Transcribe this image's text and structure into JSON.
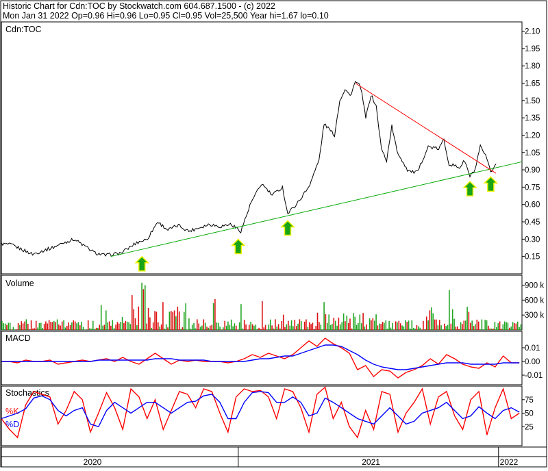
{
  "header": {
    "line1": "Historic Chart for Cdn:TOC by Stockwatch.com 604.687.1500 - (c) 2022",
    "line2": "Mon Jan 31 2022   Op=0.96  Hi=0.96  Lo=0.95  Cl=0.95  Vol=25,500  Year hi=1.67  lo=0.10"
  },
  "chart_data": [
    {
      "type": "line",
      "title": "Cdn:TOC",
      "x_axis": {
        "labels": [
          "2020",
          "2021",
          "2022"
        ]
      },
      "y_ticks": [
        "2.10",
        "1.95",
        "1.80",
        "1.65",
        "1.50",
        "1.35",
        "1.20",
        "1.05",
        "0.90",
        "0.75",
        "0.60",
        "0.45",
        "0.30",
        "0.15"
      ],
      "ylim": [
        0.0,
        2.18
      ],
      "series": [
        {
          "color": "#000000",
          "points": [
            [
              0,
              0.26
            ],
            [
              0.02,
              0.25
            ],
            [
              0.04,
              0.21
            ],
            [
              0.06,
              0.17
            ],
            [
              0.08,
              0.2
            ],
            [
              0.1,
              0.23
            ],
            [
              0.12,
              0.27
            ],
            [
              0.14,
              0.3
            ],
            [
              0.16,
              0.24
            ],
            [
              0.18,
              0.18
            ],
            [
              0.2,
              0.16
            ],
            [
              0.23,
              0.18
            ],
            [
              0.26,
              0.27
            ],
            [
              0.28,
              0.3
            ],
            [
              0.3,
              0.45
            ],
            [
              0.32,
              0.38
            ],
            [
              0.34,
              0.42
            ],
            [
              0.36,
              0.37
            ],
            [
              0.38,
              0.4
            ],
            [
              0.4,
              0.43
            ],
            [
              0.42,
              0.41
            ],
            [
              0.44,
              0.43
            ],
            [
              0.46,
              0.37
            ],
            [
              0.48,
              0.62
            ],
            [
              0.5,
              0.78
            ],
            [
              0.52,
              0.68
            ],
            [
              0.54,
              0.75
            ],
            [
              0.55,
              0.52
            ],
            [
              0.57,
              0.62
            ],
            [
              0.59,
              0.75
            ],
            [
              0.61,
              0.98
            ],
            [
              0.62,
              1.3
            ],
            [
              0.64,
              1.2
            ],
            [
              0.65,
              1.5
            ],
            [
              0.66,
              1.6
            ],
            [
              0.67,
              1.54
            ],
            [
              0.68,
              1.66
            ],
            [
              0.69,
              1.62
            ],
            [
              0.7,
              1.35
            ],
            [
              0.71,
              1.55
            ],
            [
              0.72,
              1.45
            ],
            [
              0.73,
              1.08
            ],
            [
              0.74,
              0.98
            ],
            [
              0.75,
              1.28
            ],
            [
              0.76,
              1.06
            ],
            [
              0.78,
              0.9
            ],
            [
              0.79,
              0.88
            ],
            [
              0.8,
              0.88
            ],
            [
              0.81,
              1.0
            ],
            [
              0.82,
              1.1
            ],
            [
              0.84,
              1.08
            ],
            [
              0.85,
              1.16
            ],
            [
              0.86,
              0.95
            ],
            [
              0.88,
              0.92
            ],
            [
              0.89,
              0.98
            ],
            [
              0.9,
              0.84
            ],
            [
              0.91,
              0.9
            ],
            [
              0.92,
              1.1
            ],
            [
              0.93,
              1.02
            ],
            [
              0.94,
              0.88
            ],
            [
              0.95,
              0.95
            ]
          ]
        },
        {
          "color": "#00aa00",
          "points": [
            [
              0.21,
              0.15
            ],
            [
              1.0,
              0.97
            ]
          ]
        },
        {
          "color": "#ff0000",
          "points": [
            [
              0.68,
              1.65
            ],
            [
              0.95,
              0.87
            ]
          ]
        }
      ],
      "annotations": [
        {
          "type": "up-arrow",
          "color": "#19a319",
          "x": 0.27,
          "y": 0.09
        },
        {
          "type": "up-arrow",
          "color": "#19a319",
          "x": 0.455,
          "y": 0.24
        },
        {
          "type": "up-arrow",
          "color": "#19a319",
          "x": 0.55,
          "y": 0.4
        },
        {
          "type": "up-arrow",
          "color": "#19a319",
          "x": 0.9,
          "y": 0.74
        },
        {
          "type": "up-arrow",
          "color": "#19a319",
          "x": 0.94,
          "y": 0.78
        }
      ]
    },
    {
      "type": "bar",
      "title": "Volume",
      "y_ticks": [
        "900 k",
        "600 k",
        "300 k"
      ],
      "ylim": [
        0,
        1100
      ],
      "units": "k"
    },
    {
      "type": "line",
      "title": "MACD",
      "y_ticks": [
        "0.01",
        "0.00",
        "-0.01"
      ],
      "ylim": [
        -0.017,
        0.022
      ],
      "series": [
        {
          "color": "#ff0000",
          "values": [
            0.0,
            0.0,
            -0.001,
            0.001,
            0.0,
            0.0,
            0.001,
            -0.002,
            -0.001,
            0.0,
            0.001,
            0.0,
            0.001,
            0.002,
            0.0,
            0.003,
            0.0,
            -0.002,
            0.002,
            0.006,
            0.002,
            -0.002,
            0.001,
            0.0,
            0.001,
            0.0,
            0.0,
            0.0,
            -0.001,
            0.0,
            0.002,
            0.005,
            0.003,
            0.006,
            0.004,
            0.002,
            0.005,
            0.01,
            0.015,
            0.011,
            0.017,
            0.013,
            0.01,
            0.006,
            -0.006,
            -0.003,
            -0.011,
            -0.006,
            -0.007,
            -0.012,
            -0.008,
            -0.006,
            -0.003,
            0.002,
            -0.002,
            0.005,
            0.002,
            -0.002,
            -0.004,
            -0.005,
            -0.001,
            -0.004,
            0.004,
            -0.001,
            -0.001
          ]
        },
        {
          "color": "#0000ff",
          "values": [
            0.0,
            0.0,
            0.0,
            0.0,
            0.0,
            0.0,
            0.0,
            0.0,
            0.0,
            0.0,
            0.0,
            0.0,
            0.001,
            0.001,
            0.001,
            0.001,
            0.001,
            0.001,
            0.001,
            0.002,
            0.002,
            0.002,
            0.001,
            0.001,
            0.001,
            0.001,
            0.0,
            0.0,
            0.0,
            0.0,
            0.0,
            0.001,
            0.002,
            0.002,
            0.003,
            0.004,
            0.004,
            0.006,
            0.008,
            0.01,
            0.012,
            0.012,
            0.011,
            0.008,
            0.005,
            0.001,
            -0.002,
            -0.004,
            -0.005,
            -0.006,
            -0.006,
            -0.005,
            -0.004,
            -0.003,
            -0.002,
            -0.001,
            -0.001,
            -0.001,
            -0.002,
            -0.002,
            -0.002,
            -0.002,
            -0.001,
            -0.001,
            -0.001
          ]
        }
      ]
    },
    {
      "type": "line",
      "title": "Stochastics",
      "legend": [
        "%K",
        "%D"
      ],
      "y_ticks": [
        "75",
        "50",
        "25"
      ],
      "ylim": [
        -10,
        100
      ],
      "series": [
        {
          "name": "%K",
          "color": "#ff0000",
          "values": [
            40,
            20,
            5,
            65,
            90,
            85,
            80,
            30,
            55,
            90,
            75,
            15,
            50,
            88,
            60,
            20,
            95,
            80,
            40,
            75,
            20,
            55,
            90,
            85,
            60,
            95,
            90,
            50,
            15,
            80,
            95,
            90,
            92,
            80,
            40,
            95,
            90,
            60,
            15,
            85,
            98,
            40,
            70,
            25,
            5,
            55,
            20,
            90,
            85,
            15,
            50,
            70,
            95,
            30,
            80,
            90,
            45,
            20,
            75,
            90,
            10,
            60,
            95,
            40,
            50
          ]
        },
        {
          "name": "%D",
          "color": "#0000ff",
          "values": [
            40,
            45,
            50,
            58,
            78,
            82,
            75,
            55,
            45,
            55,
            60,
            30,
            25,
            55,
            70,
            60,
            50,
            60,
            70,
            70,
            60,
            50,
            60,
            70,
            72,
            82,
            85,
            70,
            40,
            40,
            70,
            88,
            90,
            88,
            70,
            70,
            80,
            70,
            45,
            50,
            78,
            70,
            60,
            50,
            40,
            35,
            30,
            45,
            60,
            45,
            30,
            35,
            50,
            55,
            60,
            70,
            55,
            40,
            45,
            62,
            50,
            40,
            55,
            60,
            52
          ]
        }
      ]
    }
  ]
}
